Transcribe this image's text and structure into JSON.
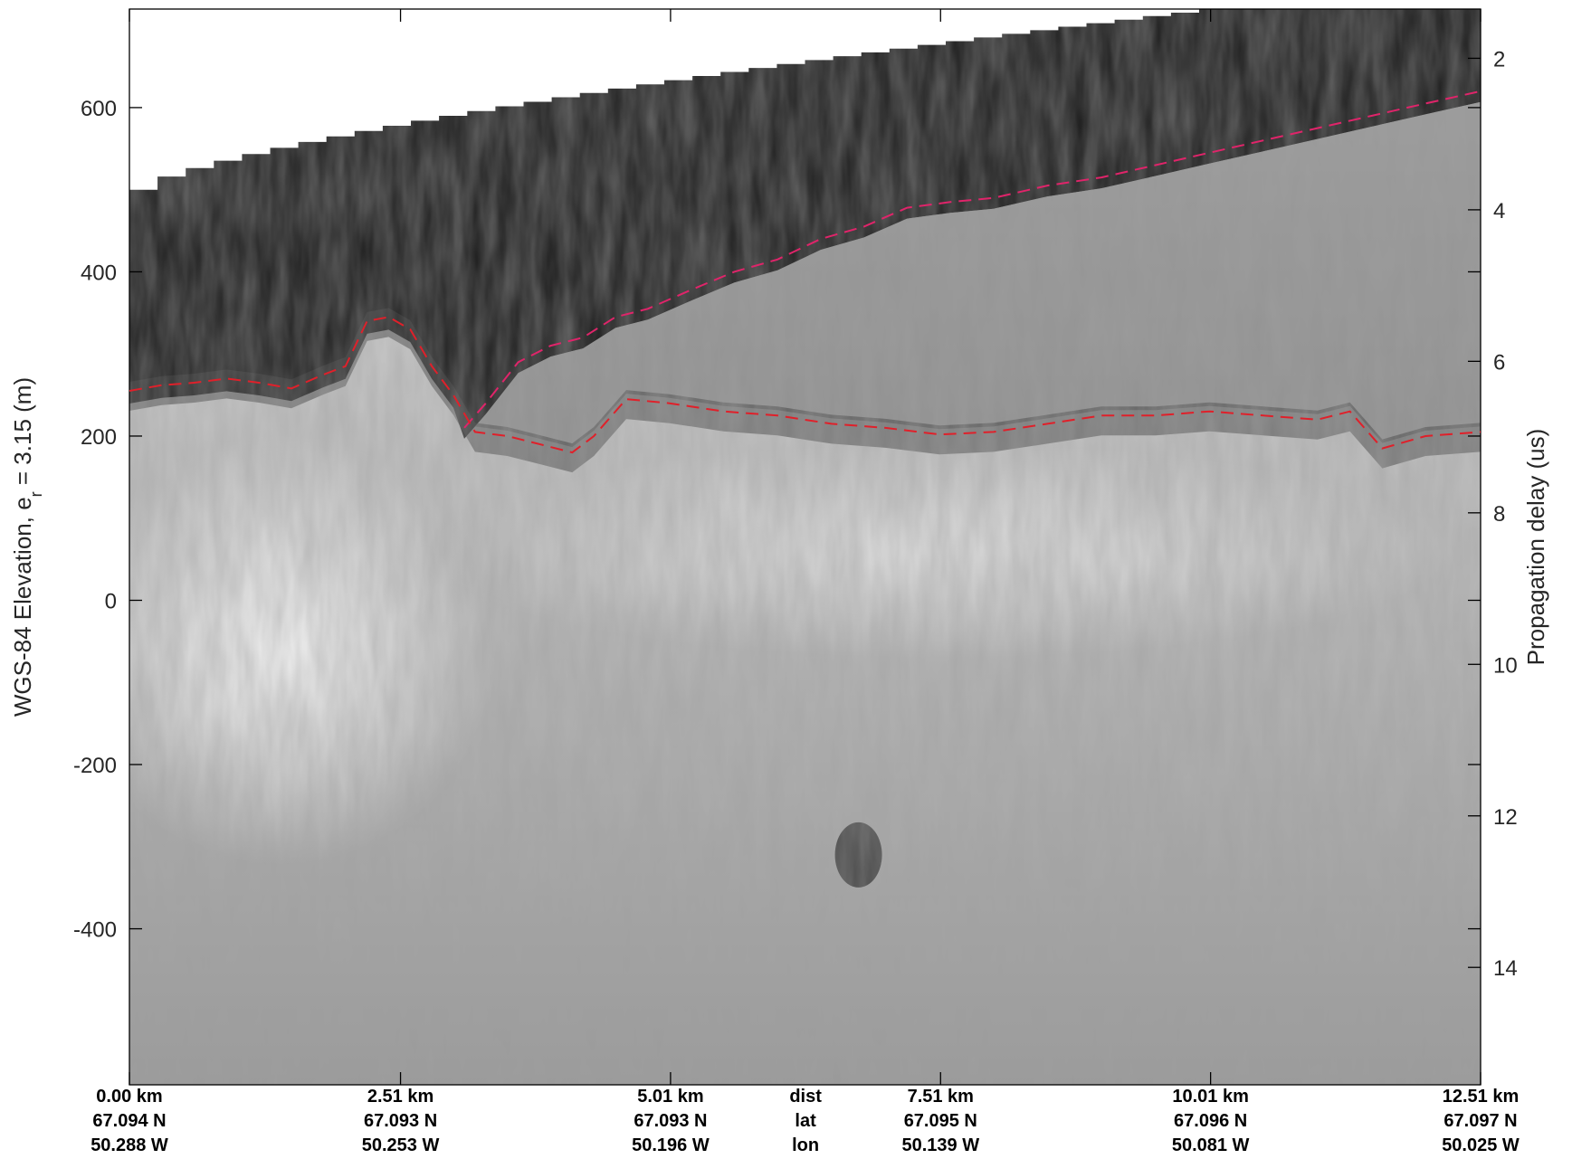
{
  "chart_data": {
    "type": "heatmap",
    "title": "",
    "colormap": "grayscale (dark = strong echo, light = weak)",
    "left_axis": {
      "label_main": "WGS-84 Elevation, e",
      "label_sub": "r",
      "label_tail": " = 3.15 (m)",
      "range": [
        -590,
        720
      ],
      "ticks": [
        600,
        400,
        200,
        0,
        -200,
        -400
      ],
      "tick_labels": [
        "600",
        "400",
        "200",
        "0",
        "-200",
        "-400"
      ]
    },
    "right_axis": {
      "label": "Propagation delay (us)",
      "range": [
        1.35,
        15.55
      ],
      "ticks": [
        2,
        4,
        6,
        8,
        10,
        12,
        14
      ],
      "tick_labels": [
        "2",
        "4",
        "6",
        "8",
        "10",
        "12",
        "14"
      ]
    },
    "x_axis": {
      "range": [
        0,
        12.51
      ],
      "row_labels": [
        "dist",
        "lat",
        "lon"
      ],
      "ticks": [
        {
          "dist": 0.0,
          "dist_label": "0.00 km",
          "lat": "67.094 N",
          "lon": "50.288 W"
        },
        {
          "dist": 2.51,
          "dist_label": "2.51 km",
          "lat": "67.093 N",
          "lon": "50.253 W"
        },
        {
          "dist": 5.01,
          "dist_label": "5.01 km",
          "lat": "67.093 N",
          "lon": "50.196 W"
        },
        {
          "dist": 7.51,
          "dist_label": "7.51 km",
          "lat": "67.095 N",
          "lon": "50.139 W"
        },
        {
          "dist": 10.01,
          "dist_label": "10.01 km",
          "lat": "67.096 N",
          "lon": "50.081 W"
        },
        {
          "dist": 12.51,
          "dist_label": "12.51 km",
          "lat": "67.097 N",
          "lon": "50.025 W"
        }
      ],
      "meta_column_at": 6.26
    },
    "series": [
      {
        "color": "#e0246a",
        "style": "dashed",
        "x": [
          3.1,
          3.3,
          3.6,
          3.9,
          4.2,
          4.5,
          4.8,
          5.2,
          5.6,
          6.0,
          6.4,
          6.8,
          7.2,
          7.6,
          8.0,
          8.5,
          9.0,
          9.5,
          10.0,
          10.5,
          11.0,
          11.5,
          12.0,
          12.51
        ],
        "y": [
          210,
          240,
          290,
          310,
          320,
          345,
          355,
          378,
          400,
          415,
          440,
          455,
          478,
          485,
          490,
          505,
          515,
          530,
          545,
          560,
          575,
          590,
          605,
          620
        ]
      },
      {
        "color": "#e0202a",
        "style": "dashed",
        "x": [
          0.0,
          0.3,
          0.6,
          0.9,
          1.2,
          1.5,
          1.8,
          2.0,
          2.2,
          2.4,
          2.6,
          2.8,
          3.0,
          3.2,
          3.5,
          3.8,
          4.1,
          4.3,
          4.6,
          5.0,
          5.5,
          6.0,
          6.5,
          7.0,
          7.5,
          8.0,
          8.5,
          9.0,
          9.5,
          10.0,
          10.5,
          11.0,
          11.3,
          11.6,
          12.0,
          12.51
        ],
        "y": [
          255,
          262,
          265,
          270,
          265,
          258,
          275,
          285,
          340,
          345,
          330,
          285,
          250,
          205,
          200,
          190,
          180,
          200,
          245,
          240,
          230,
          225,
          215,
          210,
          202,
          205,
          215,
          225,
          225,
          230,
          225,
          220,
          230,
          185,
          200,
          205
        ]
      }
    ]
  }
}
